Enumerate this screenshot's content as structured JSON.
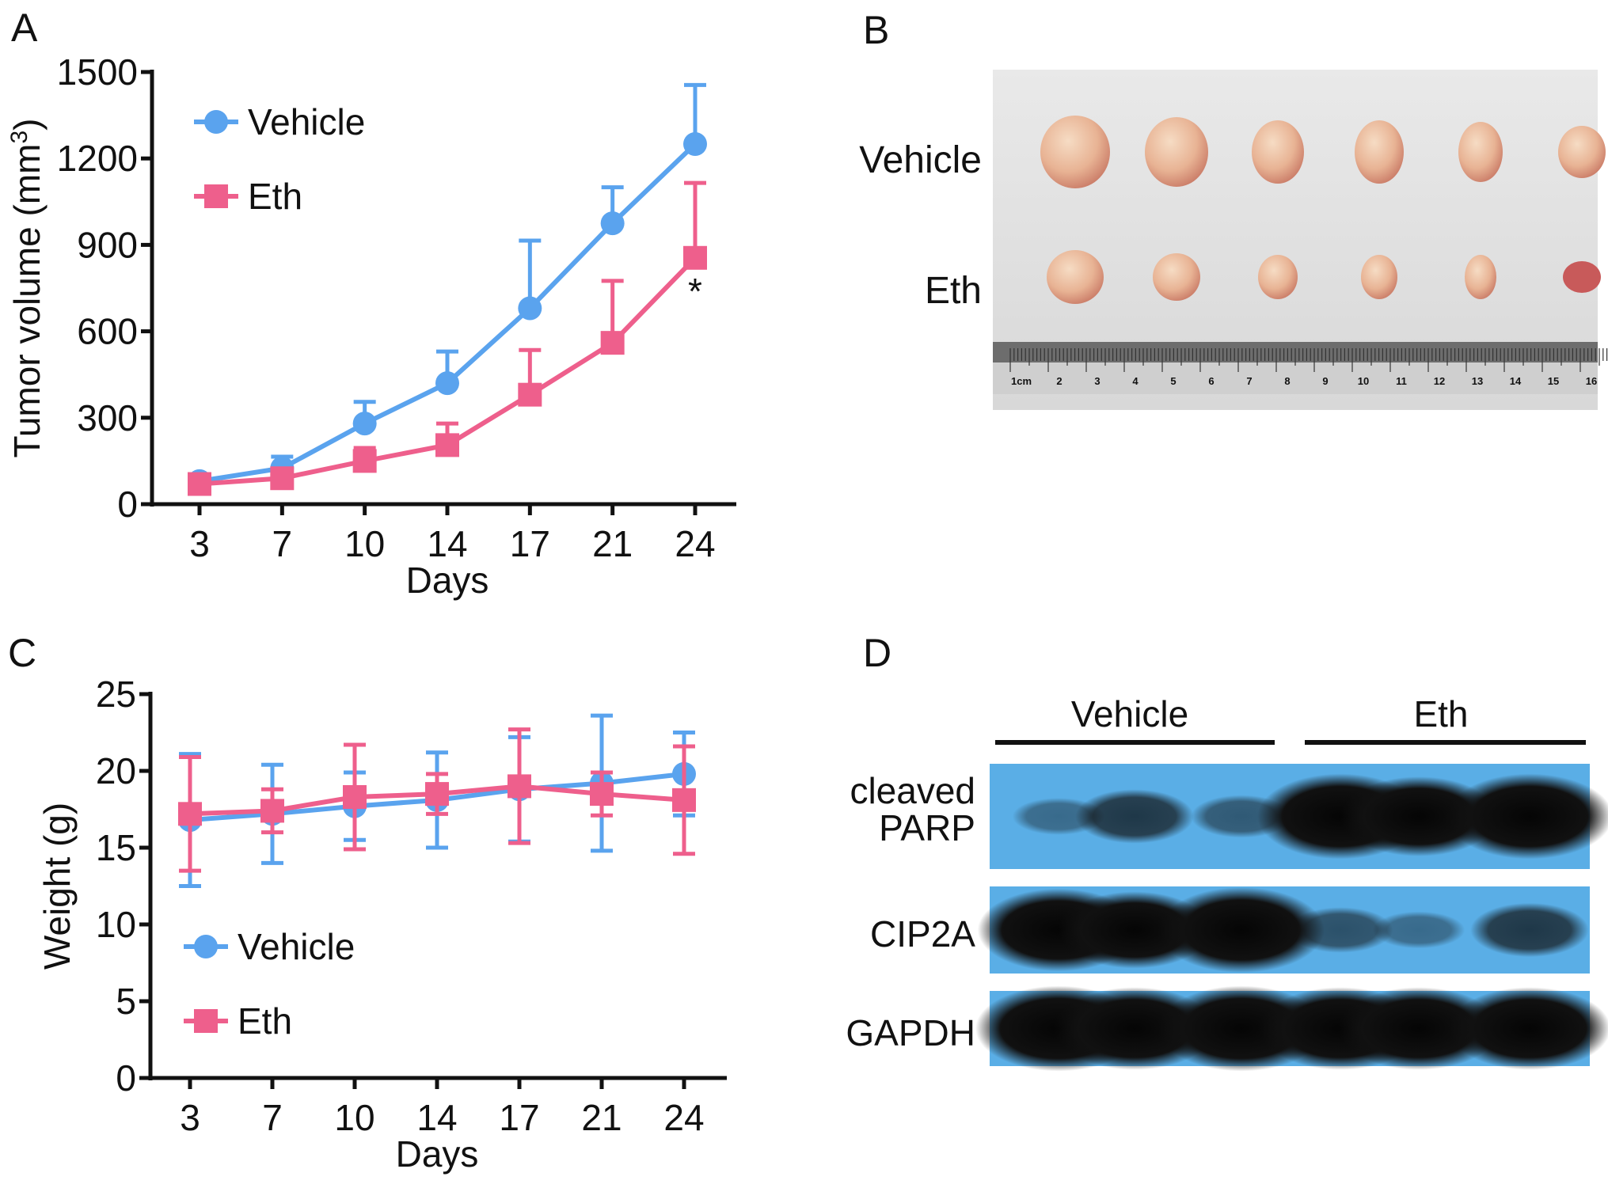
{
  "panel_labels": {
    "a": "A",
    "b": "B",
    "c": "C",
    "d": "D"
  },
  "colors": {
    "vehicle": "#5aa3ee",
    "eth": "#ee5f8c",
    "blot_bg": "#5aaee6"
  },
  "chart_data": [
    {
      "type": "line",
      "panel": "A",
      "xlabel": "Days",
      "ylabel": "Tumor volume (mm",
      "ylabel_sup": "3",
      "ylabel_end": ")",
      "x": [
        "3",
        "7",
        "10",
        "14",
        "17",
        "21",
        "24"
      ],
      "ylim": [
        0,
        1500
      ],
      "yticks": [
        "0",
        "300",
        "600",
        "900",
        "1200",
        "1500"
      ],
      "legend_position": "top-left",
      "series": [
        {
          "name": "Vehicle",
          "marker": "circle",
          "values": [
            80,
            125,
            280,
            420,
            680,
            975,
            1250
          ],
          "err": [
            15,
            40,
            75,
            110,
            235,
            125,
            205
          ],
          "err_direction": "up"
        },
        {
          "name": "Eth",
          "marker": "square",
          "values": [
            70,
            90,
            150,
            205,
            380,
            560,
            855
          ],
          "err": [
            20,
            30,
            45,
            75,
            155,
            215,
            260
          ],
          "err_direction": "up"
        }
      ],
      "annotation": {
        "text": "*",
        "x": "24"
      }
    },
    {
      "type": "line",
      "panel": "C",
      "xlabel": "Days",
      "ylabel": "Weight (g)",
      "x": [
        "3",
        "7",
        "10",
        "14",
        "17",
        "21",
        "24"
      ],
      "ylim": [
        0,
        25
      ],
      "yticks": [
        "0",
        "5",
        "10",
        "15",
        "20",
        "25"
      ],
      "legend_position": "bottom-left",
      "series": [
        {
          "name": "Vehicle",
          "marker": "circle",
          "values": [
            16.8,
            17.2,
            17.7,
            18.1,
            18.8,
            19.2,
            19.8
          ],
          "err": [
            4.3,
            3.2,
            2.2,
            3.1,
            3.4,
            4.4,
            2.7
          ],
          "err_direction": "both"
        },
        {
          "name": "Eth",
          "marker": "square",
          "values": [
            17.2,
            17.4,
            18.3,
            18.5,
            19.0,
            18.5,
            18.1
          ],
          "err": [
            3.7,
            1.4,
            3.4,
            1.3,
            3.7,
            1.4,
            3.5
          ],
          "err_direction": "both"
        }
      ]
    }
  ],
  "photo": {
    "row_labels": [
      "Vehicle",
      "Eth"
    ],
    "ruler_labels": [
      "1cm",
      "2",
      "3",
      "4",
      "5",
      "6",
      "7",
      "8",
      "9",
      "10",
      "11",
      "12",
      "13",
      "14",
      "15",
      "16"
    ]
  },
  "blot": {
    "group_labels": [
      "Vehicle",
      "Eth"
    ],
    "rows": [
      {
        "label_lines": [
          "cleaved",
          "PARP"
        ],
        "intensities": [
          0.15,
          0.45,
          0.25,
          1.0,
          0.9,
          1.0
        ]
      },
      {
        "label_lines": [
          "CIP2A"
        ],
        "intensities": [
          0.95,
          0.85,
          1.0,
          0.3,
          0.15,
          0.45
        ]
      },
      {
        "label_lines": [
          "GAPDH"
        ],
        "intensities": [
          1.0,
          0.95,
          1.0,
          0.95,
          0.95,
          0.95
        ]
      }
    ]
  }
}
